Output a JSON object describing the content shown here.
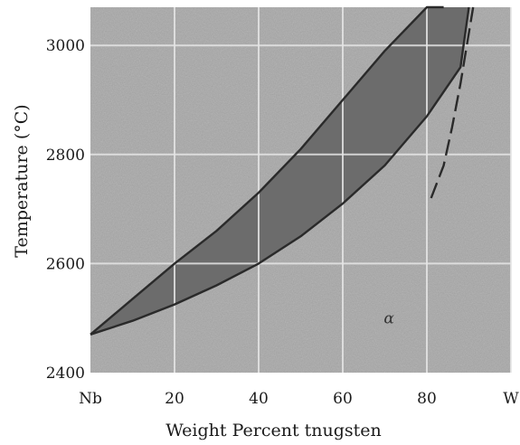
{
  "chart_data": {
    "type": "line",
    "title": "",
    "xlabel": "Weight Percent tnugsten",
    "ylabel": "Temperature (°C)",
    "xlim": [
      0,
      100
    ],
    "ylim": [
      2400,
      3070
    ],
    "x_ticks": [
      0,
      20,
      40,
      60,
      80,
      100
    ],
    "x_tick_labels": [
      "Nb",
      "20",
      "40",
      "60",
      "80",
      "W"
    ],
    "y_ticks": [
      2400,
      2600,
      2800,
      3000
    ],
    "y_tick_labels": [
      "2400",
      "2600",
      "2800",
      "3000"
    ],
    "grid": true,
    "series": [
      {
        "style": "solid",
        "x": [
          0,
          10,
          20,
          30,
          40,
          50,
          60,
          70,
          80,
          84
        ],
        "y": [
          2470,
          2535,
          2600,
          2660,
          2730,
          2810,
          2900,
          2990,
          3070,
          3070
        ]
      },
      {
        "style": "solid",
        "x": [
          0,
          10,
          20,
          30,
          40,
          50,
          60,
          70,
          80,
          88,
          90
        ],
        "y": [
          2470,
          2495,
          2525,
          2560,
          2600,
          2650,
          2710,
          2780,
          2870,
          2960,
          3070
        ]
      },
      {
        "style": "dashed",
        "x": [
          81,
          84,
          86,
          88,
          89.5,
          91
        ],
        "y": [
          2720,
          2780,
          2850,
          2930,
          3000,
          3070
        ]
      }
    ],
    "annotations": [
      {
        "text": "α",
        "x": 71,
        "y": 2490
      }
    ],
    "colors": {
      "plot_background": "#a7a7a7",
      "two_phase_region": "#6c6c6c",
      "curve": "#2a2a2a",
      "grid": "#e6e6e6"
    }
  }
}
